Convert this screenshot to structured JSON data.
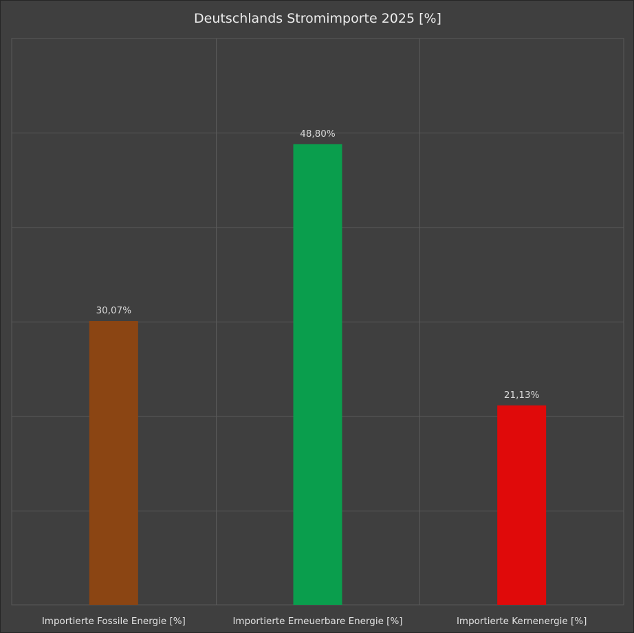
{
  "chart_data": {
    "type": "bar",
    "title": "Deutschlands Stromimporte 2025 [%]",
    "categories": [
      "Importierte Fossile Energie [%]",
      "Importierte Erneuerbare Energie [%]",
      "Importierte Kernenergie [%]"
    ],
    "values": [
      30.07,
      48.8,
      21.13
    ],
    "value_labels": [
      "30,07%",
      "48,80%",
      "21,13%"
    ],
    "colors": [
      "#8b4513",
      "#0a9e4d",
      "#e00a0a"
    ],
    "xlabel": "",
    "ylabel": "",
    "ylim": [
      0,
      60
    ],
    "grid": true,
    "legend": "none"
  },
  "style": {
    "background": "#3f3f3f",
    "grid_color": "#5a5a5a",
    "text_color": "#e2e2e2"
  }
}
